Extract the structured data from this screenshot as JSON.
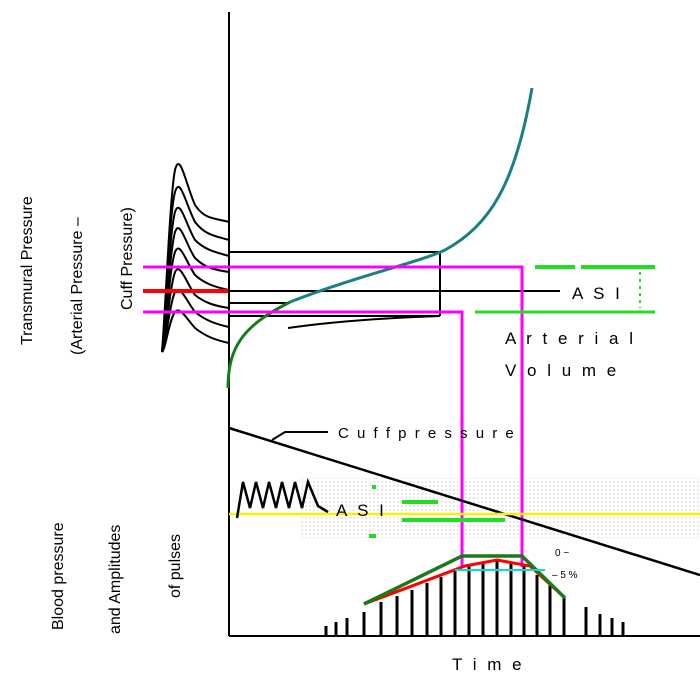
{
  "labels": {
    "y_top_line1": "Transmural Pressure",
    "y_top_line2": "(Arterial Pressure –",
    "y_top_line3": "Cuff Pressure)",
    "y_bottom_line1": "Blood pressure",
    "y_bottom_line2": "and Amplitudes",
    "y_bottom_line3": "of pulses",
    "asi_top": "A S I",
    "asi_bottom": "A S I",
    "arterial": "A r t e r i a l",
    "volume": "V o l u m e",
    "cuff_pressure": "C u f f  p r e s s u r e",
    "time": "T i m e",
    "pct_line1": "0 ~",
    "pct_line2": "– 5 %"
  },
  "colors": {
    "axis": "#000000",
    "curve": "#1a8080",
    "curve_bottom": "#1a7a1a",
    "magenta": "#ff00ff",
    "green": "#22dd22",
    "red": "#ff0000",
    "yellow": "#ffee00",
    "cyan": "#00dddd",
    "envelope_green": "#1a7a1a"
  }
}
